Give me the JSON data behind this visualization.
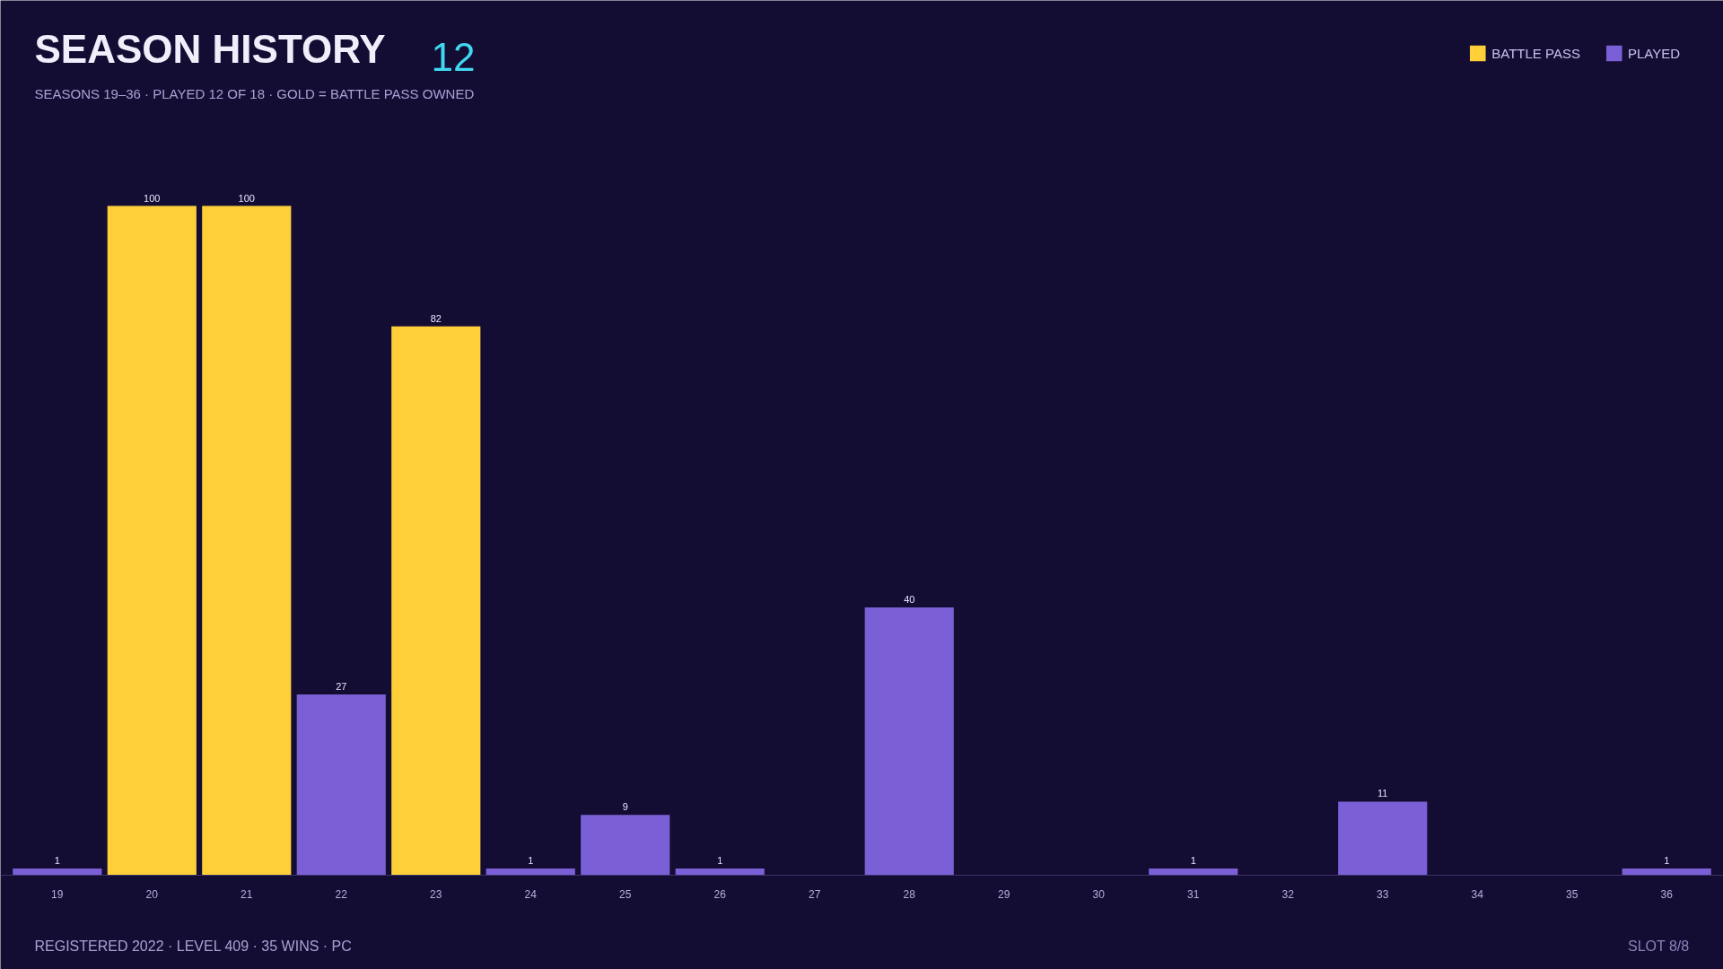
{
  "chart_data": {
    "type": "bar",
    "title": "SEASON HISTORY",
    "subtitle": "SEASONS 19–36  ·  PLAYED 12 OF 18  ·  GOLD = BATTLE PASS OWNED",
    "annotations": [
      "12",
      "REGISTERED 2022  ·  LEVEL 409  ·  35 WINS  ·  PC",
      "SLOT 8/8"
    ],
    "categories": [
      "19",
      "20",
      "21",
      "22",
      "23",
      "24",
      "25",
      "26",
      "27",
      "28",
      "29",
      "30",
      "31",
      "32",
      "33",
      "34",
      "35",
      "36"
    ],
    "series": [
      {
        "name": "BATTLE PASS",
        "color": "#ffcf3a",
        "values": [
          null,
          100,
          100,
          null,
          82,
          null,
          null,
          null,
          null,
          null,
          null,
          null,
          null,
          null,
          null,
          null,
          null,
          null
        ]
      },
      {
        "name": "PLAYED",
        "color": "#7b5fd6",
        "values": [
          1,
          null,
          null,
          27,
          null,
          1,
          9,
          1,
          null,
          40,
          null,
          null,
          1,
          null,
          11,
          null,
          null,
          1
        ]
      }
    ],
    "data_labels": true,
    "legend": "top right",
    "grid": false
  }
}
